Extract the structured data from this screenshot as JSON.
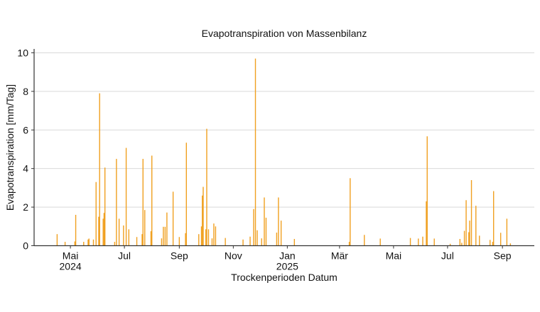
{
  "chart_data": {
    "type": "bar",
    "title": "Evapotranspiration von Massenbilanz",
    "xlabel": "Trockenperioden Datum",
    "ylabel": "Evapotranspiration [mm/Tag]",
    "xlim": [
      "2024-03-21",
      "2025-10-07"
    ],
    "ylim": [
      0,
      10.2
    ],
    "grid": "horizontal",
    "bar_color": "#f0a020",
    "yticks": [
      0,
      2,
      4,
      6,
      8,
      10
    ],
    "xticks": [
      {
        "date": "2024-05-01",
        "label": "Mai",
        "sublabel": "2024"
      },
      {
        "date": "2024-07-01",
        "label": "Jul",
        "sublabel": ""
      },
      {
        "date": "2024-09-01",
        "label": "Sep",
        "sublabel": ""
      },
      {
        "date": "2024-11-01",
        "label": "Nov",
        "sublabel": ""
      },
      {
        "date": "2025-01-01",
        "label": "Jan",
        "sublabel": "2025"
      },
      {
        "date": "2025-03-01",
        "label": "Mär",
        "sublabel": ""
      },
      {
        "date": "2025-05-01",
        "label": "Mai",
        "sublabel": ""
      },
      {
        "date": "2025-07-01",
        "label": "Jul",
        "sublabel": ""
      },
      {
        "date": "2025-09-01",
        "label": "Sep",
        "sublabel": ""
      }
    ],
    "x": [
      "2024-04-16",
      "2024-04-25",
      "2024-05-06",
      "2024-05-07",
      "2024-05-16",
      "2024-05-21",
      "2024-05-22",
      "2024-05-27",
      "2024-05-30",
      "2024-06-02",
      "2024-06-03",
      "2024-06-07",
      "2024-06-08",
      "2024-06-09",
      "2024-06-20",
      "2024-06-22",
      "2024-06-25",
      "2024-06-30",
      "2024-07-03",
      "2024-07-06",
      "2024-07-15",
      "2024-07-21",
      "2024-07-22",
      "2024-07-24",
      "2024-07-31",
      "2024-08-01",
      "2024-08-12",
      "2024-08-14",
      "2024-08-16",
      "2024-08-18",
      "2024-08-25",
      "2024-09-01",
      "2024-09-08",
      "2024-09-09",
      "2024-09-23",
      "2024-09-26",
      "2024-09-27",
      "2024-09-28",
      "2024-10-01",
      "2024-10-02",
      "2024-10-04",
      "2024-10-08",
      "2024-10-10",
      "2024-10-12",
      "2024-10-23",
      "2024-11-12",
      "2024-11-20",
      "2024-11-24",
      "2024-11-26",
      "2024-11-28",
      "2024-12-03",
      "2024-12-06",
      "2024-12-08",
      "2024-12-20",
      "2024-12-22",
      "2024-12-25",
      "2025-01-09",
      "2025-03-12",
      "2025-03-13",
      "2025-03-29",
      "2025-04-16",
      "2025-05-20",
      "2025-05-29",
      "2025-06-03",
      "2025-06-07",
      "2025-06-08",
      "2025-06-16",
      "2025-07-04",
      "2025-07-15",
      "2025-07-17",
      "2025-07-20",
      "2025-07-22",
      "2025-07-25",
      "2025-07-26",
      "2025-07-28",
      "2025-08-02",
      "2025-08-06",
      "2025-08-18",
      "2025-08-21",
      "2025-08-22",
      "2025-08-30",
      "2025-09-06",
      "2025-09-10"
    ],
    "values": [
      0.6,
      0.2,
      0.22,
      1.6,
      0.2,
      0.32,
      0.37,
      0.32,
      3.3,
      1.5,
      7.9,
      1.4,
      1.7,
      4.05,
      0.2,
      4.5,
      1.4,
      1.05,
      5.07,
      0.85,
      0.45,
      0.6,
      4.5,
      1.85,
      0.75,
      4.67,
      0.38,
      0.98,
      0.98,
      1.72,
      2.8,
      0.45,
      0.65,
      5.34,
      0.6,
      1.0,
      2.6,
      3.05,
      0.85,
      6.06,
      0.85,
      0.38,
      1.15,
      1.0,
      0.4,
      0.32,
      0.47,
      1.9,
      9.7,
      0.8,
      0.38,
      2.5,
      1.45,
      0.68,
      2.5,
      1.3,
      0.35,
      0.2,
      3.5,
      0.56,
      0.37,
      0.4,
      0.37,
      0.47,
      2.3,
      5.67,
      0.37,
      0.1,
      0.35,
      0.15,
      0.77,
      2.36,
      0.7,
      1.3,
      3.4,
      2.07,
      0.52,
      0.3,
      0.2,
      2.83,
      0.67,
      1.4,
      0.12
    ]
  }
}
